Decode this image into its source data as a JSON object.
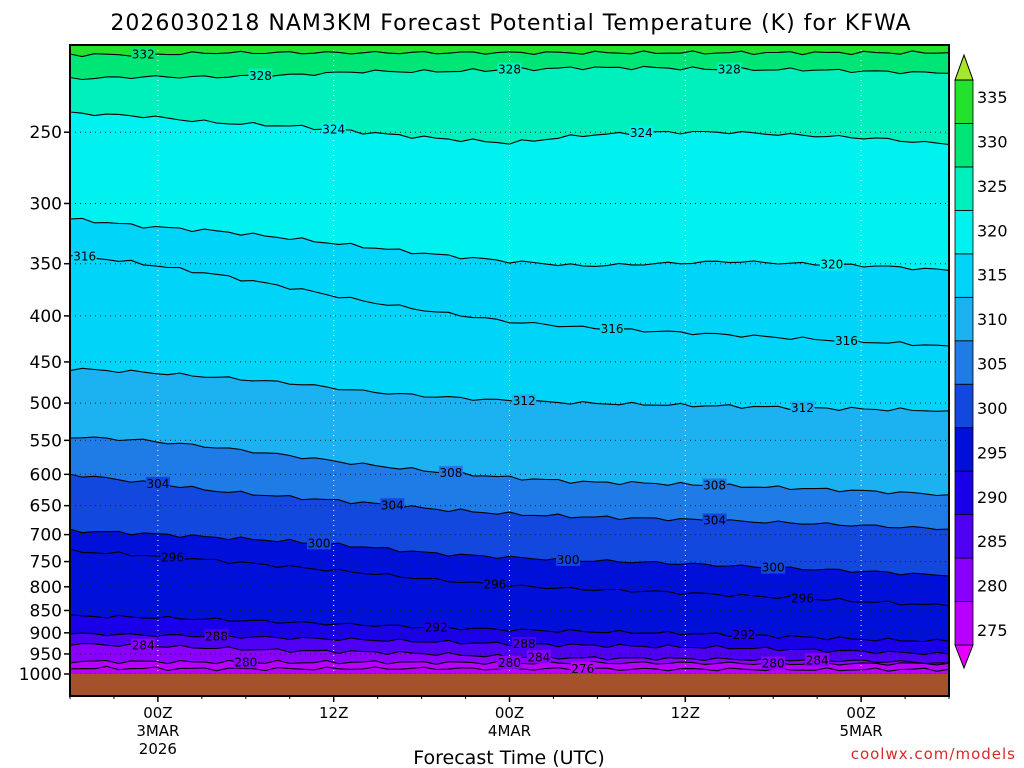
{
  "chart_data": {
    "type": "contour",
    "title": "2026030218 NAM3KM Forecast Potential Temperature (K) for KFWA",
    "xlabel": "Forecast Time (UTC)",
    "ylabel": "",
    "credit": "coolwx.com/models",
    "xlim": [
      -6,
      54
    ],
    "ylim": [
      1000,
      200
    ],
    "x_ticks": [
      {
        "hour": 0,
        "lines": [
          "00Z",
          "3MAR",
          "2026"
        ]
      },
      {
        "hour": 12,
        "lines": [
          "12Z"
        ]
      },
      {
        "hour": 24,
        "lines": [
          "00Z",
          "4MAR"
        ]
      },
      {
        "hour": 36,
        "lines": [
          "12Z"
        ]
      },
      {
        "hour": 48,
        "lines": [
          "00Z",
          "5MAR"
        ]
      }
    ],
    "y_ticks": [
      250,
      300,
      350,
      400,
      450,
      500,
      550,
      600,
      650,
      700,
      750,
      800,
      850,
      900,
      950,
      1000
    ],
    "y_tick_labels": [
      "250",
      "300",
      "350",
      "400",
      "450",
      "500",
      "550",
      "600",
      "650",
      "700",
      "750",
      "800",
      "850",
      "900",
      "950",
      "1000"
    ],
    "colorbar": {
      "ticks": [
        275,
        280,
        285,
        290,
        295,
        300,
        305,
        310,
        315,
        320,
        325,
        330,
        335
      ],
      "tick_labels": [
        "275",
        "280",
        "285",
        "290",
        "295",
        "300",
        "305",
        "310",
        "315",
        "320",
        "325",
        "330",
        "335"
      ],
      "colors": [
        "#e600ff",
        "#b800ff",
        "#8a00ff",
        "#4d00f2",
        "#1a00e8",
        "#0010d8",
        "#1248dd",
        "#1f7be6",
        "#1cb1f0",
        "#00d4f8",
        "#00f2f0",
        "#00f0bd",
        "#00e676",
        "#22e22c",
        "#a6e62b"
      ]
    },
    "contour_levels": [
      {
        "theta": 276,
        "pressure": [
          985,
          986,
          987,
          987,
          986,
          986,
          987,
          987,
          988,
          988,
          989,
          989,
          988
        ],
        "labels": [
          {
            "hour": 29,
            "text": "276"
          }
        ]
      },
      {
        "theta": 280,
        "pressure": [
          968,
          969,
          970,
          971,
          970,
          971,
          972,
          972,
          972,
          973,
          974,
          974,
          973
        ],
        "labels": [
          {
            "hour": 6,
            "text": "280"
          },
          {
            "hour": 24,
            "text": "280"
          },
          {
            "hour": 42,
            "text": "280"
          }
        ]
      },
      {
        "theta": 284,
        "pressure": [
          926,
          930,
          936,
          942,
          945,
          950,
          957,
          960,
          961,
          963,
          965,
          968,
          972
        ],
        "labels": [
          {
            "hour": -1,
            "text": "284"
          },
          {
            "hour": 26,
            "text": "284"
          },
          {
            "hour": 45,
            "text": "284"
          }
        ]
      },
      {
        "theta": 288,
        "pressure": [
          902,
          905,
          908,
          912,
          916,
          921,
          926,
          929,
          932,
          935,
          940,
          945,
          950
        ],
        "labels": [
          {
            "hour": 4,
            "text": "288"
          },
          {
            "hour": 25,
            "text": "288"
          }
        ]
      },
      {
        "theta": 292,
        "pressure": [
          862,
          865,
          870,
          876,
          882,
          888,
          893,
          897,
          900,
          904,
          910,
          916,
          920
        ],
        "labels": [
          {
            "hour": 19,
            "text": "292"
          },
          {
            "hour": 40,
            "text": "292"
          }
        ]
      },
      {
        "theta": 296,
        "pressure": [
          730,
          738,
          748,
          760,
          772,
          786,
          798,
          805,
          810,
          817,
          824,
          832,
          840
        ],
        "labels": [
          {
            "hour": 1,
            "text": "296"
          },
          {
            "hour": 23,
            "text": "296"
          },
          {
            "hour": 44,
            "text": "296"
          }
        ]
      },
      {
        "theta": 300,
        "pressure": [
          693,
          698,
          705,
          712,
          722,
          735,
          742,
          748,
          752,
          758,
          764,
          770,
          778
        ],
        "labels": [
          {
            "hour": 11,
            "text": "300"
          },
          {
            "hour": 28,
            "text": "300"
          },
          {
            "hour": 42,
            "text": "300"
          }
        ]
      },
      {
        "theta": 304,
        "pressure": [
          600,
          612,
          626,
          636,
          645,
          656,
          664,
          669,
          672,
          676,
          680,
          685,
          690
        ],
        "labels": [
          {
            "hour": 0,
            "text": "304"
          },
          {
            "hour": 16,
            "text": "304"
          },
          {
            "hour": 38,
            "text": "304"
          }
        ]
      },
      {
        "theta": 308,
        "pressure": [
          545,
          550,
          560,
          572,
          585,
          596,
          605,
          612,
          614,
          618,
          622,
          627,
          632
        ],
        "labels": [
          {
            "hour": 20,
            "text": "308"
          },
          {
            "hour": 38,
            "text": "308"
          }
        ]
      },
      {
        "theta": 312,
        "pressure": [
          458,
          462,
          468,
          475,
          485,
          492,
          497,
          500,
          502,
          504,
          506,
          508,
          510
        ],
        "labels": [
          {
            "hour": 25,
            "text": "312"
          },
          {
            "hour": 44,
            "text": "312"
          }
        ]
      },
      {
        "theta": 316,
        "pressure": [
          342,
          350,
          360,
          372,
          385,
          396,
          406,
          412,
          416,
          420,
          424,
          428,
          432
        ],
        "labels": [
          {
            "hour": -5,
            "text": "316"
          },
          {
            "hour": 31,
            "text": "316"
          },
          {
            "hour": 47,
            "text": "316"
          }
        ]
      },
      {
        "theta": 320,
        "pressure": [
          312,
          318,
          322,
          328,
          335,
          342,
          348,
          352,
          350,
          348,
          350,
          352,
          356
        ],
        "labels": [
          {
            "hour": 46,
            "text": "320"
          }
        ]
      },
      {
        "theta": 324,
        "pressure": [
          238,
          240,
          244,
          246,
          250,
          254,
          257,
          252,
          250,
          250,
          252,
          254,
          258
        ],
        "labels": [
          {
            "hour": 12,
            "text": "324"
          },
          {
            "hour": 33,
            "text": "324"
          }
        ]
      },
      {
        "theta": 328,
        "pressure": [
          218,
          217,
          217,
          216,
          214,
          214,
          213,
          212,
          212,
          213,
          213,
          214,
          215
        ],
        "labels": [
          {
            "hour": 7,
            "text": "328"
          },
          {
            "hour": 24,
            "text": "328"
          },
          {
            "hour": 39,
            "text": "328"
          }
        ]
      },
      {
        "theta": 332,
        "pressure": [
          205,
          205,
          204,
          204,
          204,
          204,
          204,
          204,
          204,
          204,
          204,
          204,
          204
        ],
        "labels": [
          {
            "hour": -1,
            "text": "332"
          }
        ]
      }
    ],
    "contour_hours": [
      -6,
      -1,
      4,
      9,
      14,
      19,
      24,
      29,
      34,
      39,
      44,
      49,
      54
    ]
  }
}
